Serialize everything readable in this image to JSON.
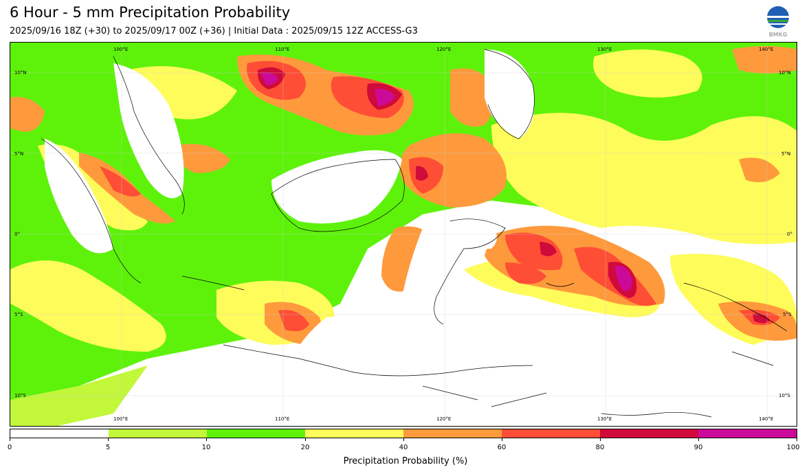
{
  "header": {
    "title": "6 Hour - 5 mm Precipitation Probability",
    "subtitle": "2025/09/16 18Z (+30) to 2025/09/17 00Z (+36) | Initial Data : 2025/09/15 12Z ACCESS-G3",
    "logo_text": "BMKG"
  },
  "map": {
    "top_lon_labels": [
      "100°E",
      "110°E",
      "120°E",
      "130°E",
      "140°E"
    ],
    "bottom_lon_labels": [
      "100°E",
      "110°E",
      "120°E",
      "130°E",
      "140°E"
    ],
    "left_lat_labels": [
      "10°N",
      "5°N",
      "0°",
      "5°S",
      "10°S"
    ],
    "right_lat_labels": [
      "10°N",
      "5°N",
      "0°",
      "5°S",
      "10°S"
    ]
  },
  "colorbar": {
    "title": "Precipitation Probability (%)",
    "tick_labels": [
      "0",
      "5",
      "10",
      "20",
      "40",
      "60",
      "80",
      "90",
      "100"
    ],
    "colors": [
      "#ffffff",
      "#c3f73a",
      "#5ef20b",
      "#fefc5a",
      "#fe9a3c",
      "#fe4e35",
      "#d00a3a",
      "#cc0a9a"
    ]
  }
}
